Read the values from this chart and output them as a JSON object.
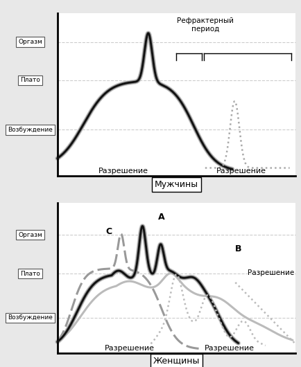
{
  "title_male": "Мужчины",
  "title_female": "Женщины",
  "label_orgasm": "Оргазм",
  "label_plato": "Плато",
  "label_vozbuzhdenie": "Возбуждение",
  "label_razreshenie": "Разрешение",
  "label_refrakterniy": "Рефрактерный\nпериод",
  "label_A": "A",
  "label_B": "B",
  "label_C": "C",
  "bg_color": "#e8e8e8",
  "plot_bg": "#ffffff",
  "line_color_dark": "#111111",
  "line_color_mid": "#666666",
  "line_color_light": "#aaaaaa",
  "dashed_color": "#aaaaaa"
}
